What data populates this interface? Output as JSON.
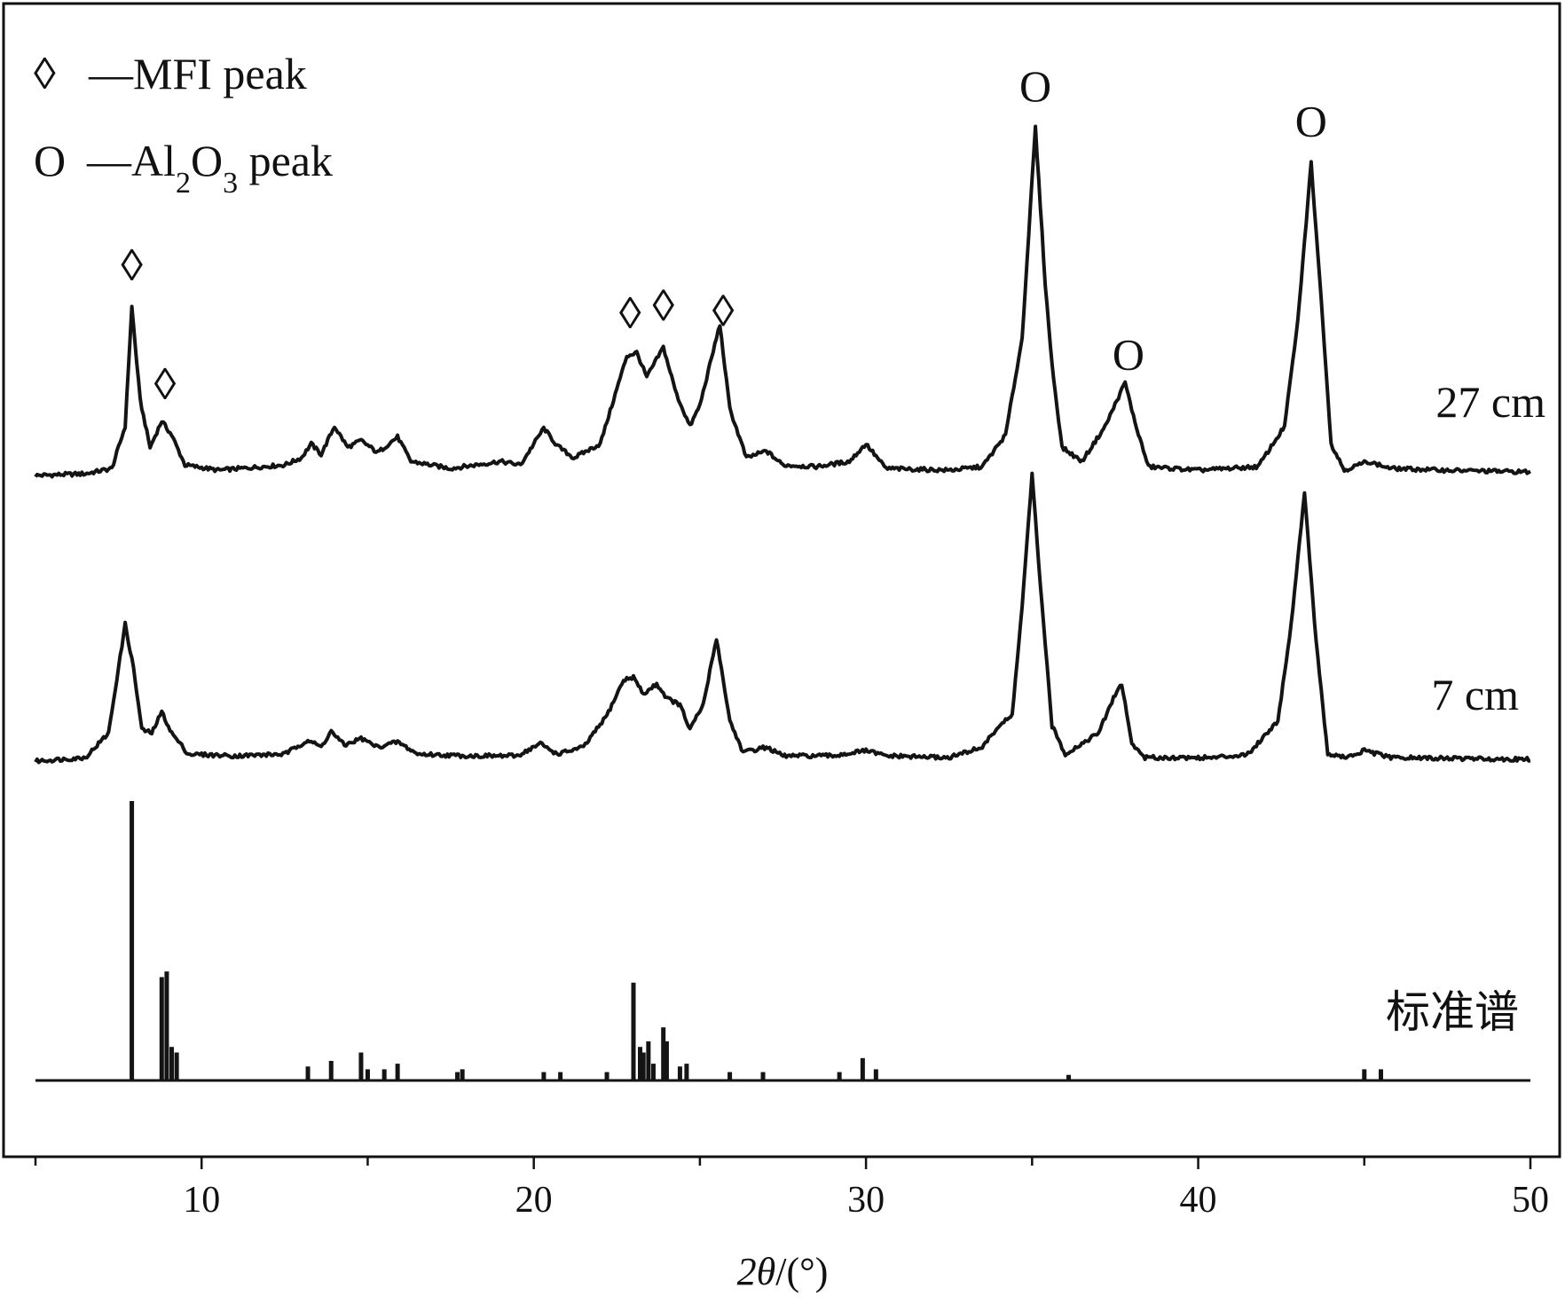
{
  "chart_data": {
    "type": "line",
    "title": "",
    "xlabel": "2θ/(°)",
    "ylabel": "",
    "xlim": [
      5,
      50
    ],
    "x_ticks": [
      10,
      20,
      30,
      40,
      50
    ],
    "grid": false,
    "legend": [
      {
        "symbol": "◊",
        "text": "—MFI peak"
      },
      {
        "symbol": "O",
        "text": "—Al2O3 peak",
        "text_parts": [
          "—Al",
          "2",
          "O",
          "3",
          " peak"
        ]
      }
    ],
    "series": [
      {
        "name": "27 cm",
        "baseline": 0.05,
        "points": [
          [
            5.0,
            0.02
          ],
          [
            6.5,
            0.03
          ],
          [
            7.3,
            0.06
          ],
          [
            7.7,
            0.3
          ],
          [
            7.9,
            0.98
          ],
          [
            8.15,
            0.45
          ],
          [
            8.45,
            0.18
          ],
          [
            8.8,
            0.33
          ],
          [
            9.1,
            0.25
          ],
          [
            9.5,
            0.08
          ],
          [
            10.5,
            0.05
          ],
          [
            12.5,
            0.08
          ],
          [
            13.0,
            0.12
          ],
          [
            13.3,
            0.2
          ],
          [
            13.6,
            0.14
          ],
          [
            14.0,
            0.3
          ],
          [
            14.4,
            0.18
          ],
          [
            14.8,
            0.22
          ],
          [
            15.3,
            0.15
          ],
          [
            15.9,
            0.24
          ],
          [
            16.3,
            0.1
          ],
          [
            17.5,
            0.06
          ],
          [
            19.0,
            0.1
          ],
          [
            19.6,
            0.08
          ],
          [
            20.3,
            0.29
          ],
          [
            20.7,
            0.19
          ],
          [
            21.2,
            0.12
          ],
          [
            22.0,
            0.2
          ],
          [
            22.4,
            0.45
          ],
          [
            22.8,
            0.7
          ],
          [
            23.1,
            0.72
          ],
          [
            23.4,
            0.58
          ],
          [
            23.9,
            0.75
          ],
          [
            24.3,
            0.48
          ],
          [
            24.7,
            0.3
          ],
          [
            25.0,
            0.42
          ],
          [
            25.6,
            0.88
          ],
          [
            25.9,
            0.4
          ],
          [
            26.4,
            0.12
          ],
          [
            27.0,
            0.16
          ],
          [
            27.5,
            0.08
          ],
          [
            28.5,
            0.07
          ],
          [
            29.5,
            0.1
          ],
          [
            30.0,
            0.2
          ],
          [
            30.6,
            0.06
          ],
          [
            32.5,
            0.05
          ],
          [
            33.5,
            0.07
          ],
          [
            34.2,
            0.25
          ],
          [
            34.7,
            0.8
          ],
          [
            35.1,
            2.0
          ],
          [
            35.4,
            1.1
          ],
          [
            35.6,
            0.65
          ],
          [
            35.9,
            0.18
          ],
          [
            36.5,
            0.1
          ],
          [
            37.2,
            0.3
          ],
          [
            37.8,
            0.55
          ],
          [
            38.1,
            0.32
          ],
          [
            38.5,
            0.07
          ],
          [
            40.0,
            0.05
          ],
          [
            41.8,
            0.07
          ],
          [
            42.6,
            0.3
          ],
          [
            43.0,
            0.9
          ],
          [
            43.4,
            1.8
          ],
          [
            43.75,
            0.9
          ],
          [
            44.0,
            0.2
          ],
          [
            44.4,
            0.05
          ],
          [
            45.1,
            0.1
          ],
          [
            45.8,
            0.06
          ],
          [
            47.5,
            0.05
          ],
          [
            50.0,
            0.04
          ]
        ]
      },
      {
        "name": "7 cm",
        "baseline": 0.03,
        "points": [
          [
            5.0,
            0.02
          ],
          [
            6.5,
            0.04
          ],
          [
            7.2,
            0.18
          ],
          [
            7.7,
            0.8
          ],
          [
            7.95,
            0.55
          ],
          [
            8.2,
            0.2
          ],
          [
            8.5,
            0.18
          ],
          [
            8.8,
            0.3
          ],
          [
            9.1,
            0.18
          ],
          [
            9.6,
            0.06
          ],
          [
            11.0,
            0.05
          ],
          [
            12.5,
            0.06
          ],
          [
            13.2,
            0.14
          ],
          [
            13.6,
            0.1
          ],
          [
            13.9,
            0.19
          ],
          [
            14.3,
            0.11
          ],
          [
            14.8,
            0.15
          ],
          [
            15.3,
            0.1
          ],
          [
            15.9,
            0.13
          ],
          [
            16.5,
            0.06
          ],
          [
            18.0,
            0.05
          ],
          [
            19.5,
            0.05
          ],
          [
            20.2,
            0.12
          ],
          [
            20.7,
            0.06
          ],
          [
            21.5,
            0.1
          ],
          [
            22.2,
            0.28
          ],
          [
            22.7,
            0.48
          ],
          [
            23.0,
            0.5
          ],
          [
            23.3,
            0.4
          ],
          [
            23.7,
            0.46
          ],
          [
            24.0,
            0.38
          ],
          [
            24.4,
            0.34
          ],
          [
            24.7,
            0.2
          ],
          [
            25.1,
            0.34
          ],
          [
            25.5,
            0.72
          ],
          [
            25.9,
            0.25
          ],
          [
            26.3,
            0.07
          ],
          [
            27.0,
            0.1
          ],
          [
            27.5,
            0.05
          ],
          [
            29.0,
            0.05
          ],
          [
            30.0,
            0.08
          ],
          [
            30.6,
            0.05
          ],
          [
            32.5,
            0.04
          ],
          [
            33.5,
            0.1
          ],
          [
            34.0,
            0.22
          ],
          [
            34.4,
            0.28
          ],
          [
            34.7,
            0.9
          ],
          [
            35.0,
            1.65
          ],
          [
            35.3,
            0.9
          ],
          [
            35.6,
            0.22
          ],
          [
            36.0,
            0.06
          ],
          [
            37.0,
            0.18
          ],
          [
            37.5,
            0.4
          ],
          [
            37.7,
            0.46
          ],
          [
            38.0,
            0.12
          ],
          [
            38.4,
            0.04
          ],
          [
            40.5,
            0.04
          ],
          [
            41.5,
            0.06
          ],
          [
            42.4,
            0.25
          ],
          [
            42.8,
            0.8
          ],
          [
            43.2,
            1.55
          ],
          [
            43.55,
            0.7
          ],
          [
            43.9,
            0.06
          ],
          [
            44.5,
            0.04
          ],
          [
            45.0,
            0.08
          ],
          [
            45.8,
            0.04
          ],
          [
            50.0,
            0.03
          ]
        ]
      },
      {
        "name": "标准谱",
        "sticks": [
          [
            7.9,
            1.0
          ],
          [
            8.8,
            0.37
          ],
          [
            8.95,
            0.39
          ],
          [
            9.1,
            0.12
          ],
          [
            9.25,
            0.1
          ],
          [
            13.2,
            0.05
          ],
          [
            13.9,
            0.07
          ],
          [
            14.8,
            0.1
          ],
          [
            15.0,
            0.04
          ],
          [
            15.5,
            0.04
          ],
          [
            15.9,
            0.06
          ],
          [
            17.7,
            0.03
          ],
          [
            17.85,
            0.04
          ],
          [
            20.3,
            0.03
          ],
          [
            20.8,
            0.03
          ],
          [
            22.2,
            0.03
          ],
          [
            23.0,
            0.35
          ],
          [
            23.2,
            0.12
          ],
          [
            23.3,
            0.1
          ],
          [
            23.45,
            0.14
          ],
          [
            23.6,
            0.06
          ],
          [
            23.9,
            0.19
          ],
          [
            24.0,
            0.14
          ],
          [
            24.4,
            0.05
          ],
          [
            24.6,
            0.06
          ],
          [
            25.9,
            0.03
          ],
          [
            26.9,
            0.03
          ],
          [
            29.2,
            0.03
          ],
          [
            29.9,
            0.08
          ],
          [
            30.3,
            0.04
          ],
          [
            36.1,
            0.02
          ],
          [
            45.0,
            0.04
          ],
          [
            45.5,
            0.04
          ]
        ]
      }
    ],
    "annotations": [
      {
        "symbol": "◊",
        "x": 7.9,
        "series": "27 cm"
      },
      {
        "symbol": "◊",
        "x": 8.9,
        "series": "27 cm"
      },
      {
        "symbol": "◊",
        "x": 22.9,
        "series": "27 cm"
      },
      {
        "symbol": "◊",
        "x": 23.9,
        "series": "27 cm"
      },
      {
        "symbol": "◊",
        "x": 25.7,
        "series": "27 cm"
      },
      {
        "symbol": "O",
        "x": 35.1,
        "series": "27 cm"
      },
      {
        "symbol": "O",
        "x": 37.9,
        "series": "27 cm"
      },
      {
        "symbol": "O",
        "x": 43.4,
        "series": "27 cm"
      }
    ]
  }
}
